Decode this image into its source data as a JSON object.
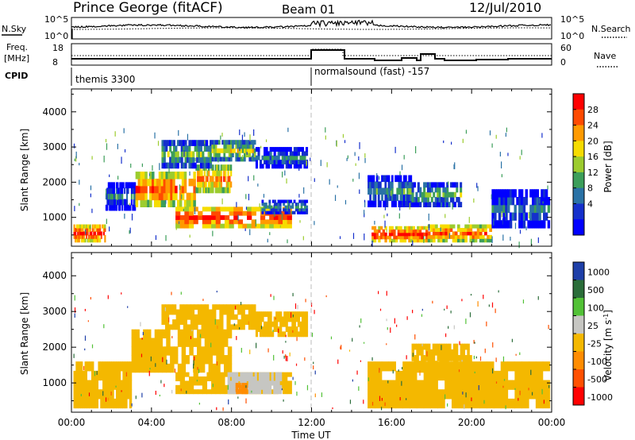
{
  "header": {
    "station": "Prince George (fitACF)",
    "beam": "Beam 01",
    "date": "12/Jul/2010"
  },
  "sky_panel": {
    "left_label": "N.Sky",
    "right_label": "N.Search",
    "left_ticks": [
      "10^5",
      "10^0"
    ],
    "right_ticks": [
      "10^5",
      "10^0"
    ]
  },
  "freq_panel": {
    "left_label_1": "Freq.",
    "left_label_2": "[MHz]",
    "right_label": "Nave",
    "left_ticks": [
      "18",
      "8"
    ],
    "right_ticks": [
      "60",
      "0"
    ]
  },
  "cpid": {
    "label": "CPID",
    "modes": [
      {
        "name": "themis 3300",
        "start_hour": 0
      },
      {
        "name": "normalsound (fast) -157",
        "start_hour": 12
      }
    ]
  },
  "power_colorbar": {
    "label": "Power [dB]",
    "ticks": [
      "28",
      "24",
      "20",
      "16",
      "12",
      "8",
      "4"
    ],
    "colors": [
      "#ff0000",
      "#ff4a00",
      "#ff9a00",
      "#f6dc00",
      "#9ccc2e",
      "#3c9e5a",
      "#2a72a6",
      "#1530cc",
      "#0000ff"
    ]
  },
  "velocity_colorbar": {
    "label": "Velocity [m s",
    "label_sup": "-1",
    "label_end": "]",
    "ticks": [
      "1000",
      "500",
      "100",
      "25",
      "-25",
      "-100",
      "-500",
      "-1000"
    ],
    "colors": [
      "#1e3fa8",
      "#2b6d3a",
      "#52c136",
      "#c6c6c2",
      "#f4b800",
      "#ff8c00",
      "#ff5000",
      "#ff0000"
    ]
  },
  "x_axis": {
    "title": "Time UT",
    "ticks": [
      "00:00",
      "04:00",
      "08:00",
      "12:00",
      "16:00",
      "20:00",
      "00:00"
    ]
  },
  "y_axis": {
    "title": "Slant Range [km]",
    "ticks": [
      "1000",
      "2000",
      "3000",
      "4000"
    ]
  },
  "chart_data": [
    {
      "type": "heatmap",
      "panel": "power",
      "title": "Power [dB]",
      "xlabel": "Time UT",
      "ylabel": "Slant Range [km]",
      "xlim": [
        0,
        24
      ],
      "ylim": [
        180,
        4650
      ],
      "clim": [
        0,
        32
      ],
      "regions": [
        {
          "t0": 0.1,
          "t1": 1.7,
          "r0": 300,
          "r1": 800,
          "power": 30
        },
        {
          "t0": 1.7,
          "t1": 3.2,
          "r0": 1200,
          "r1": 2000,
          "power": 9
        },
        {
          "t0": 3.2,
          "t1": 6.2,
          "r0": 1300,
          "r1": 2300,
          "power": 27
        },
        {
          "t0": 6.2,
          "t1": 8.0,
          "r0": 1700,
          "r1": 2500,
          "power": 25
        },
        {
          "t0": 4.5,
          "t1": 7.0,
          "r0": 2400,
          "r1": 3200,
          "power": 15
        },
        {
          "t0": 7.0,
          "t1": 9.2,
          "r0": 2600,
          "r1": 3200,
          "power": 18
        },
        {
          "t0": 9.2,
          "t1": 11.8,
          "r0": 2400,
          "r1": 3000,
          "power": 10
        },
        {
          "t0": 5.2,
          "t1": 11.0,
          "r0": 700,
          "r1": 1300,
          "power": 29
        },
        {
          "t0": 9.5,
          "t1": 11.8,
          "r0": 1100,
          "r1": 1500,
          "power": 12
        },
        {
          "t0": 15.0,
          "t1": 17.8,
          "r0": 300,
          "r1": 750,
          "power": 30
        },
        {
          "t0": 17.8,
          "t1": 21.0,
          "r0": 300,
          "r1": 800,
          "power": 27
        },
        {
          "t0": 21.0,
          "t1": 23.9,
          "r0": 700,
          "r1": 1800,
          "power": 10
        },
        {
          "t0": 14.8,
          "t1": 17.0,
          "r0": 1300,
          "r1": 2200,
          "power": 12
        },
        {
          "t0": 17.0,
          "t1": 19.5,
          "r0": 1300,
          "r1": 2000,
          "power": 14
        }
      ]
    },
    {
      "type": "heatmap",
      "panel": "velocity",
      "title": "Velocity [m s-1]",
      "xlabel": "Time UT",
      "ylabel": "Slant Range [km]",
      "xlim": [
        0,
        24
      ],
      "ylim": [
        180,
        4650
      ],
      "clim": [
        -1000,
        1000
      ],
      "regions": [
        {
          "t0": 0.1,
          "t1": 3.0,
          "r0": 300,
          "r1": 1600,
          "velocity": 0
        },
        {
          "t0": 3.0,
          "t1": 8.0,
          "r0": 1300,
          "r1": 2500,
          "velocity": 0
        },
        {
          "t0": 4.5,
          "t1": 9.2,
          "r0": 2500,
          "r1": 3200,
          "velocity": 0
        },
        {
          "t0": 9.2,
          "t1": 11.8,
          "r0": 2300,
          "r1": 3000,
          "velocity": 0
        },
        {
          "t0": 5.2,
          "t1": 11.0,
          "r0": 700,
          "r1": 1300,
          "velocity": 0
        },
        {
          "t0": 7.8,
          "t1": 10.5,
          "r0": 700,
          "r1": 1300,
          "velocity": 80
        },
        {
          "t0": 8.2,
          "t1": 8.8,
          "r0": 700,
          "r1": 1000,
          "velocity": -60
        },
        {
          "t0": 14.8,
          "t1": 23.9,
          "r0": 300,
          "r1": 1600,
          "velocity": 0
        },
        {
          "t0": 17.0,
          "t1": 20.0,
          "r0": 1300,
          "r1": 2100,
          "velocity": 0
        }
      ]
    }
  ]
}
